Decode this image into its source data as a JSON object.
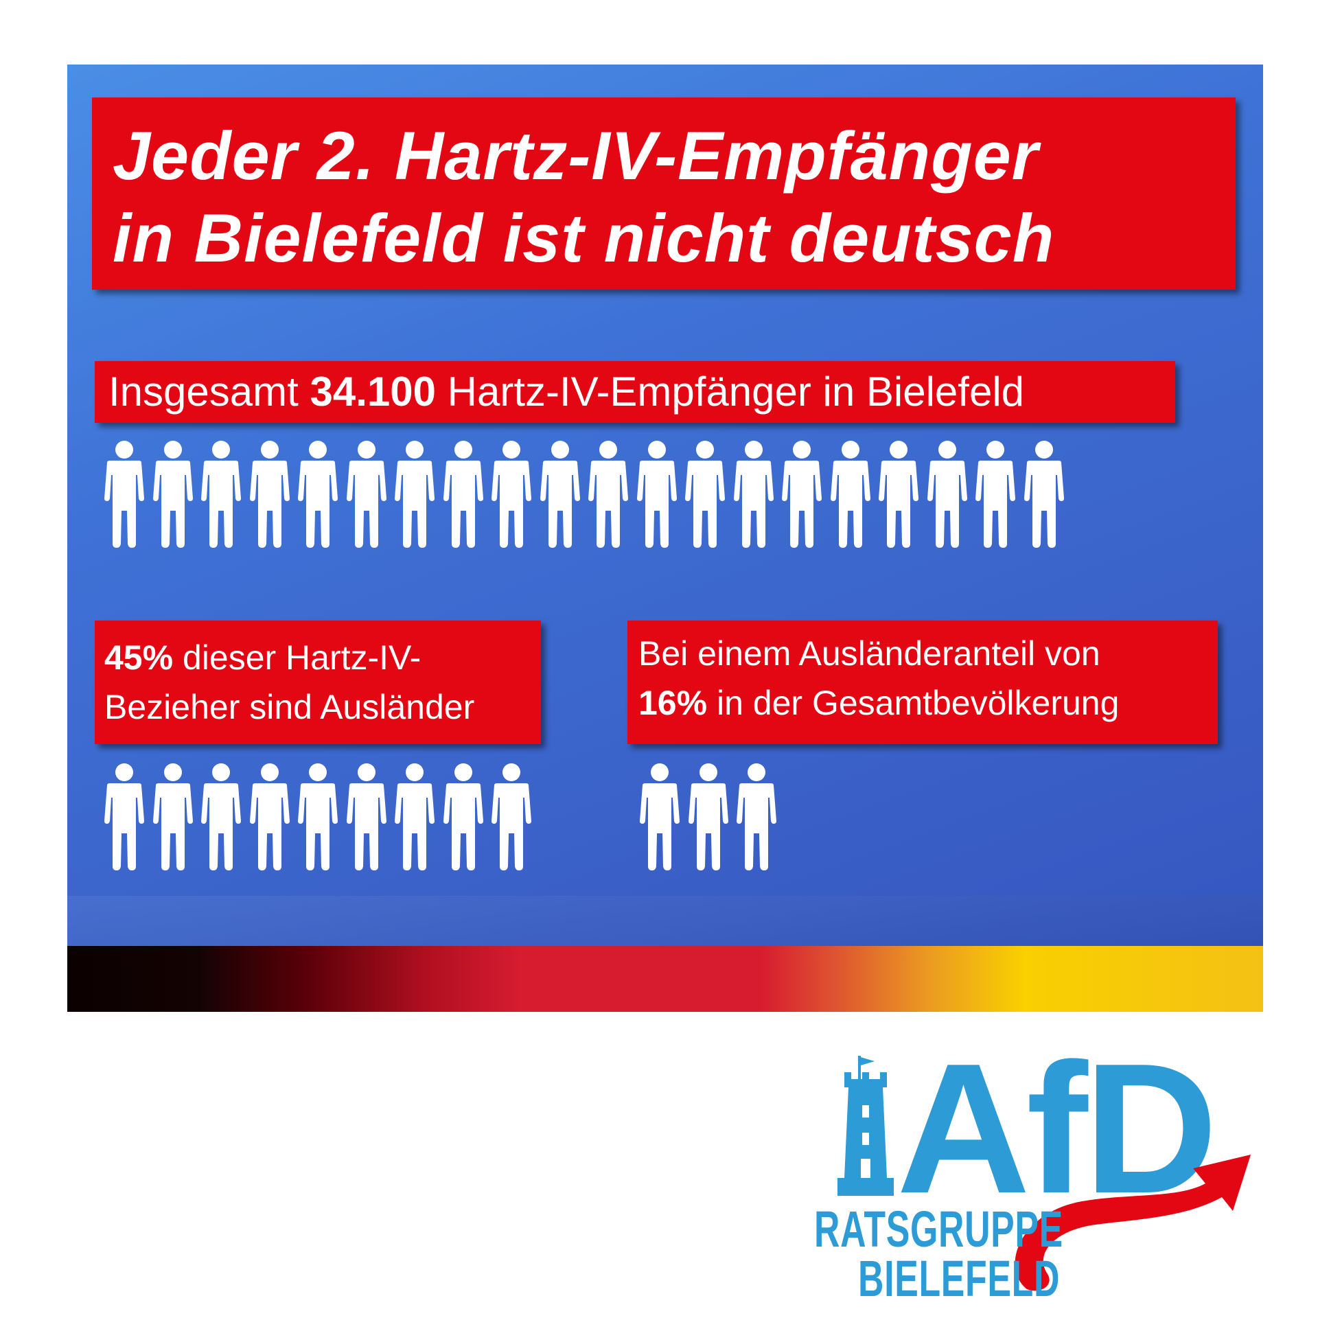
{
  "headline": {
    "line1": "Jeder 2. Hartz-IV-Empfänger",
    "line2": "in Bielefeld ist nicht deutsch"
  },
  "total": {
    "prefix": "Insgesamt",
    "number": "34.100",
    "suffix": "Hartz-IV-Empfänger in Bielefeld",
    "icon_count": 20
  },
  "foreigner_share": {
    "number": "45%",
    "line1_rest": "dieser Hartz-IV-",
    "line2": "Bezieher sind Ausländer",
    "icon_count": 9
  },
  "population_share": {
    "line1": "Bei einem Ausländeranteil von",
    "number": "16%",
    "line2_rest": "in der Gesamtbevölkerung",
    "icon_count": 3
  },
  "logo": {
    "name": "AfD",
    "line1": "RATSGRUPPE",
    "line2": "BIELEFELD",
    "icons": [
      "tower-icon",
      "swoosh-arrow-icon"
    ]
  },
  "colors": {
    "background_blue": "#3f72d6",
    "box_red": "#e30613",
    "logo_blue": "#2d9bd6",
    "stripe": [
      "#000000",
      "#d71c30",
      "#f9d000"
    ]
  }
}
